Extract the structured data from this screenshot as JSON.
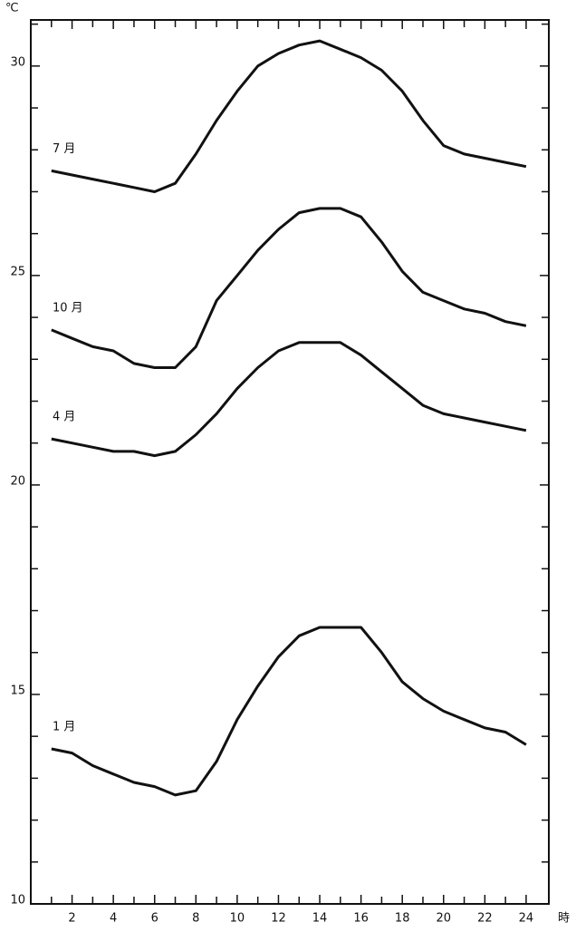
{
  "chart_data": {
    "type": "line",
    "y_unit": "℃",
    "x_unit": "時",
    "x": [
      1,
      2,
      3,
      4,
      5,
      6,
      7,
      8,
      9,
      10,
      11,
      12,
      13,
      14,
      15,
      16,
      17,
      18,
      19,
      20,
      21,
      22,
      23,
      24
    ],
    "series": [
      {
        "name": "7 月",
        "color": "#111111",
        "values": [
          27.5,
          27.4,
          27.3,
          27.2,
          27.1,
          27.0,
          27.2,
          27.9,
          28.7,
          29.4,
          30.0,
          30.3,
          30.5,
          30.6,
          30.4,
          30.2,
          29.9,
          29.4,
          28.7,
          28.1,
          27.9,
          27.8,
          27.7,
          27.6
        ]
      },
      {
        "name": "10 月",
        "color": "#111111",
        "values": [
          23.7,
          23.5,
          23.3,
          23.2,
          22.9,
          22.8,
          22.8,
          23.3,
          24.4,
          25.0,
          25.6,
          26.1,
          26.5,
          26.6,
          26.6,
          26.4,
          25.8,
          25.1,
          24.6,
          24.4,
          24.2,
          24.1,
          23.9,
          23.8
        ]
      },
      {
        "name": "4 月",
        "color": "#111111",
        "values": [
          21.1,
          21.0,
          20.9,
          20.8,
          20.8,
          20.7,
          20.8,
          21.2,
          21.7,
          22.3,
          22.8,
          23.2,
          23.4,
          23.4,
          23.4,
          23.1,
          22.7,
          22.3,
          21.9,
          21.7,
          21.6,
          21.5,
          21.4,
          21.3
        ]
      },
      {
        "name": "1 月",
        "color": "#111111",
        "values": [
          13.7,
          13.6,
          13.3,
          13.1,
          12.9,
          12.8,
          12.6,
          12.7,
          13.4,
          14.4,
          15.2,
          15.9,
          16.4,
          16.6,
          16.6,
          16.6,
          16.0,
          15.3,
          14.9,
          14.6,
          14.4,
          14.2,
          14.1,
          13.8
        ]
      }
    ],
    "xlim": [
      0,
      25.1
    ],
    "ylim": [
      10,
      31.1
    ],
    "xticks": [
      2,
      4,
      6,
      8,
      10,
      12,
      14,
      16,
      18,
      20,
      22,
      24
    ],
    "xminor_ticks": [
      1,
      3,
      5,
      7,
      9,
      11,
      13,
      15,
      17,
      19,
      21,
      23
    ],
    "yticks": [
      10,
      15,
      20,
      25,
      30
    ],
    "yminor_ticks": [
      11,
      12,
      13,
      14,
      16,
      17,
      18,
      19,
      21,
      22,
      23,
      24,
      26,
      27,
      28,
      29,
      31
    ],
    "grid": false
  }
}
